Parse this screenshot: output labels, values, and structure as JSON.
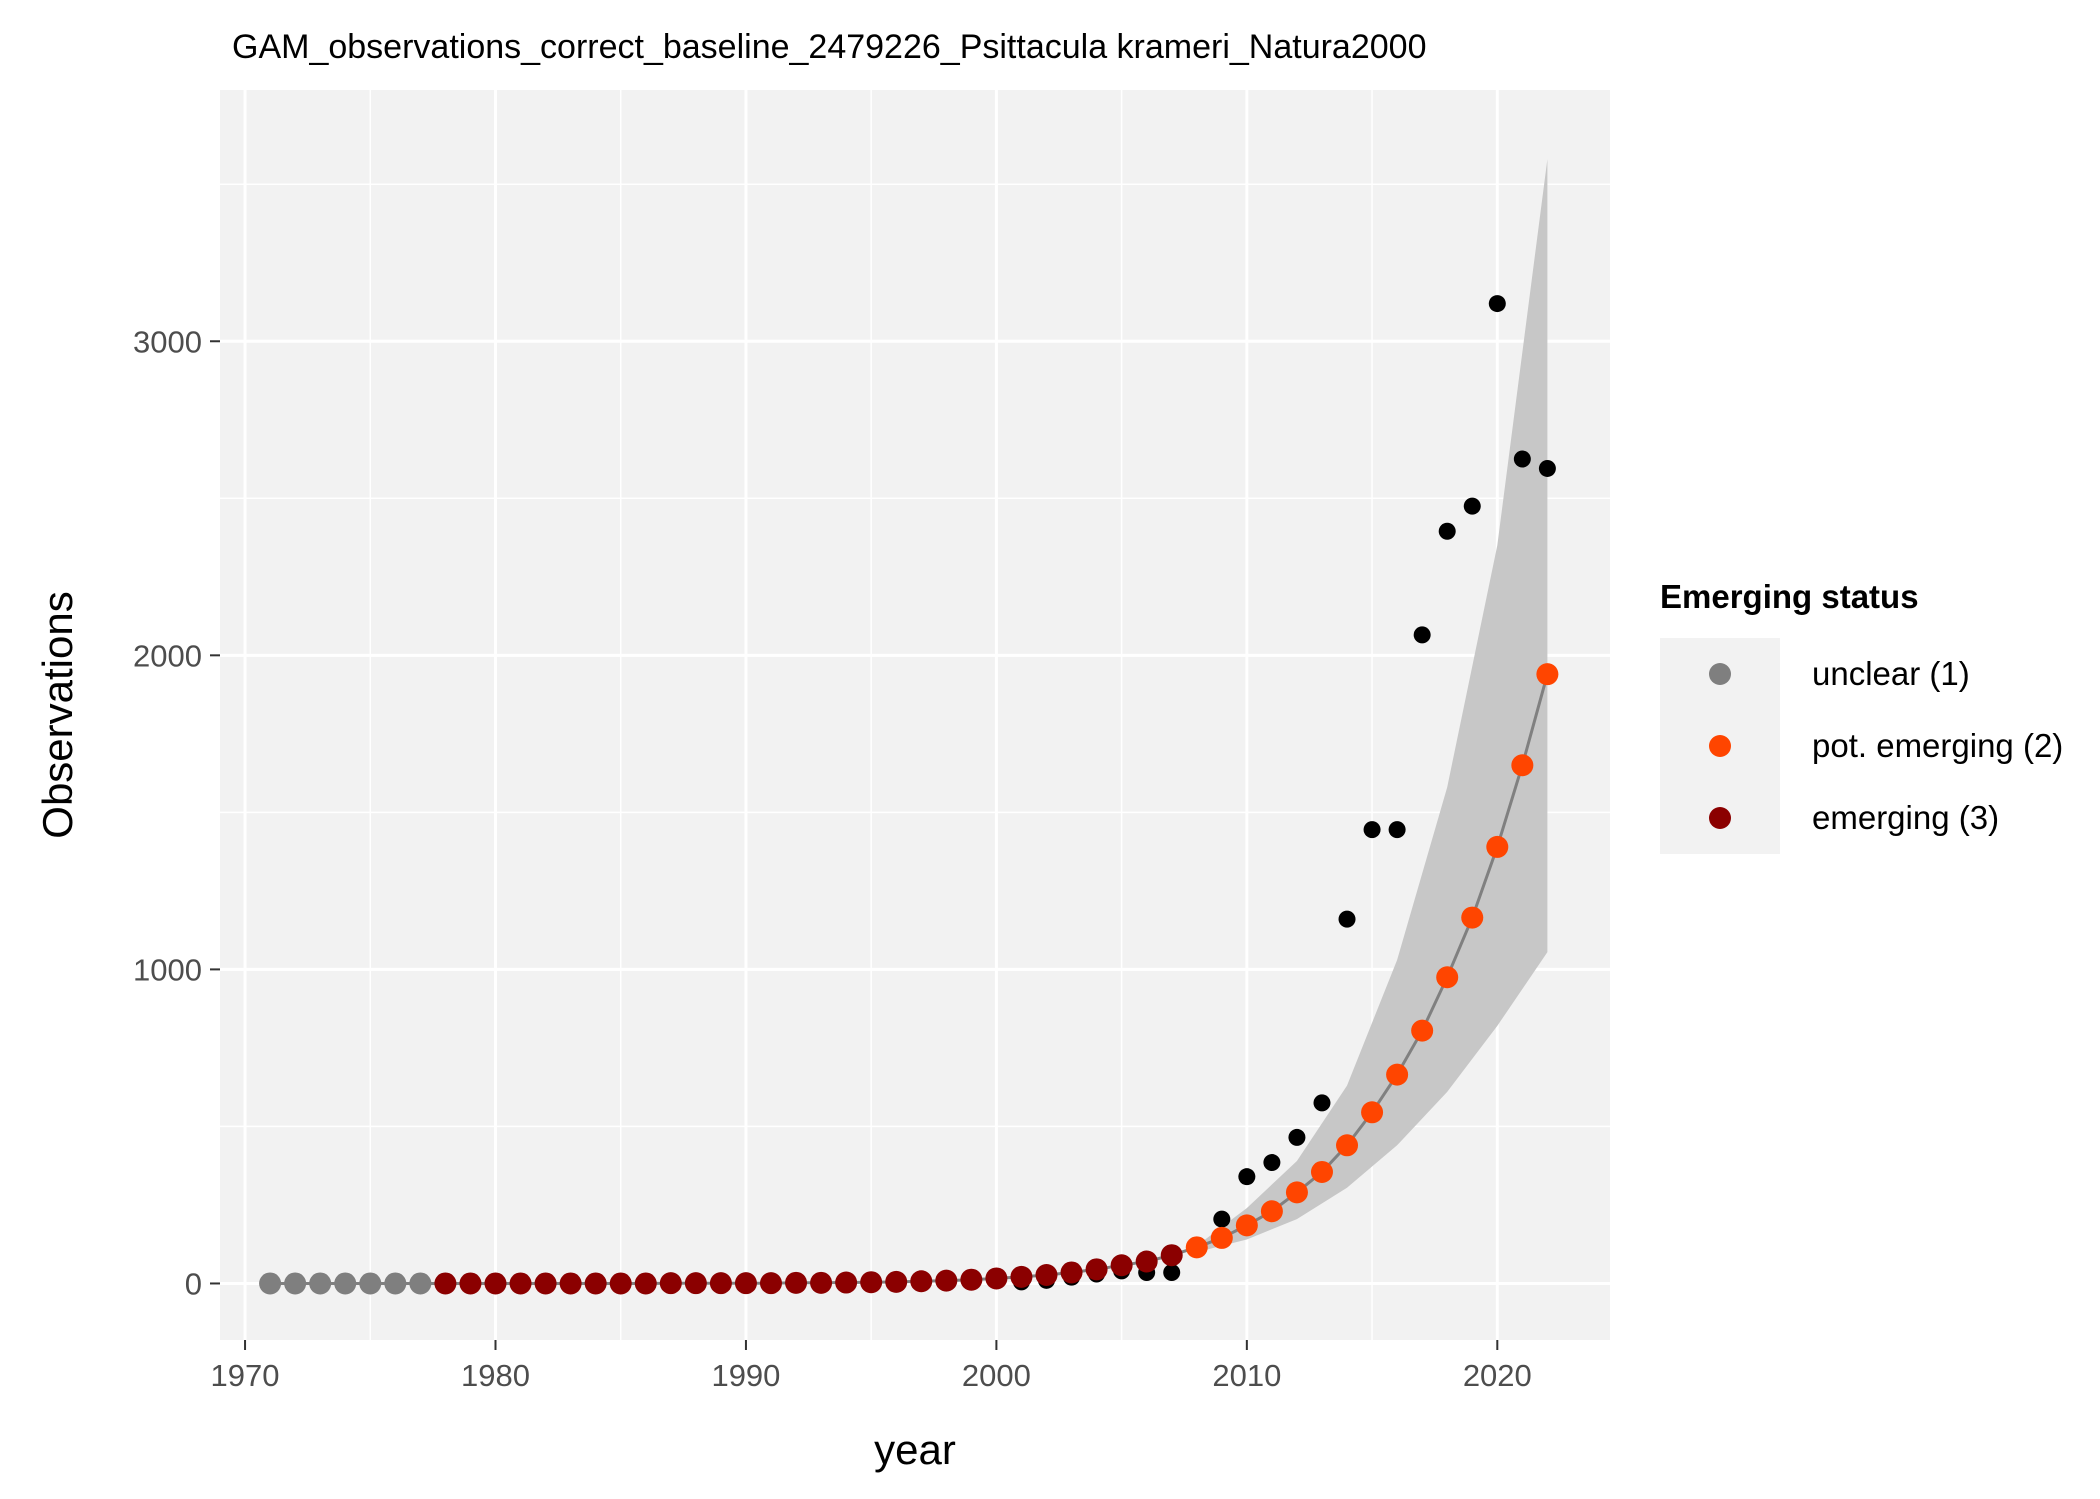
{
  "chart_data": {
    "type": "scatter",
    "title": "GAM_observations_correct_baseline_2479226_Psittacula krameri_Natura2000",
    "xlabel": "year",
    "ylabel": "Observations",
    "xlim": [
      1969,
      2024.5
    ],
    "ylim": [
      -180,
      3800
    ],
    "x_ticks": [
      1970,
      1980,
      1990,
      2000,
      2010,
      2020
    ],
    "y_ticks": [
      0,
      1000,
      2000,
      3000
    ],
    "grid": true,
    "legend": {
      "title": "Emerging status",
      "position": "right",
      "entries": [
        {
          "label": "unclear (1)",
          "color": "#7f7f7f"
        },
        {
          "label": "pot. emerging (2)",
          "color": "#ff4500"
        },
        {
          "label": "emerging (3)",
          "color": "#8b0000"
        }
      ]
    },
    "colors": {
      "panel": "#f2f2f2",
      "grid": "#ffffff",
      "ribbon": "#c7c7c7",
      "fit_line": "#808080",
      "observed": "#000000"
    },
    "observed": {
      "x": [
        2001,
        2002,
        2003,
        2004,
        2005,
        2006,
        2007,
        2008,
        2009,
        2010,
        2011,
        2012,
        2013,
        2014,
        2015,
        2016,
        2017,
        2018,
        2019,
        2020,
        2021,
        2022
      ],
      "y": [
        5,
        10,
        20,
        30,
        40,
        35,
        35,
        115,
        205,
        340,
        385,
        465,
        575,
        1160,
        1445,
        1445,
        2065,
        2395,
        2475,
        3120,
        2625,
        2595
      ]
    },
    "fitted": {
      "x": [
        1971,
        1972,
        1973,
        1974,
        1975,
        1976,
        1977,
        1978,
        1979,
        1980,
        1981,
        1982,
        1983,
        1984,
        1985,
        1986,
        1987,
        1988,
        1989,
        1990,
        1991,
        1992,
        1993,
        1994,
        1995,
        1996,
        1997,
        1998,
        1999,
        2000,
        2001,
        2002,
        2003,
        2004,
        2005,
        2006,
        2007,
        2008,
        2009,
        2010,
        2011,
        2012,
        2013,
        2014,
        2015,
        2016,
        2017,
        2018,
        2019,
        2020,
        2021,
        2022
      ],
      "y": [
        0,
        0,
        0,
        0,
        0,
        0,
        0,
        0,
        0,
        0,
        0,
        0,
        0,
        0,
        0,
        0,
        1,
        1,
        1,
        1,
        1,
        2,
        2,
        3,
        4,
        5,
        7,
        9,
        12,
        16,
        21,
        27,
        35,
        45,
        58,
        70,
        90,
        115,
        145,
        185,
        230,
        290,
        355,
        440,
        545,
        665,
        805,
        975,
        1165,
        1390,
        1650,
        1940
      ],
      "status": [
        1,
        1,
        1,
        1,
        1,
        1,
        1,
        3,
        3,
        3,
        3,
        3,
        3,
        3,
        3,
        3,
        3,
        3,
        3,
        3,
        3,
        3,
        3,
        3,
        3,
        3,
        3,
        3,
        3,
        3,
        3,
        3,
        3,
        3,
        3,
        3,
        3,
        2,
        2,
        2,
        2,
        2,
        2,
        2,
        2,
        2,
        2,
        2,
        2,
        2,
        2,
        2
      ]
    },
    "ribbon": {
      "x": [
        2008,
        2010,
        2012,
        2014,
        2016,
        2018,
        2020,
        2022
      ],
      "lower": [
        100,
        140,
        205,
        305,
        440,
        610,
        820,
        1055
      ],
      "upper": [
        120,
        240,
        390,
        630,
        1030,
        1580,
        2350,
        3580
      ]
    }
  }
}
